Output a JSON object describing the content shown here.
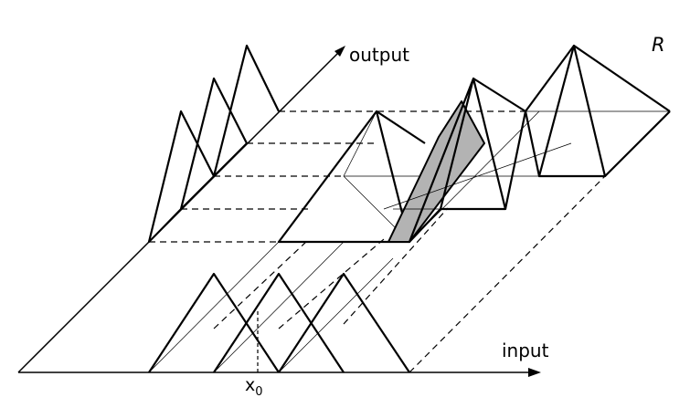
{
  "labels": {
    "output_axis": "output",
    "input_axis": "input",
    "relation": "R",
    "point_main": "x",
    "point_sub": "0"
  },
  "colors": {
    "stroke": "#000000",
    "shading": "#b3b3b3",
    "background": "#ffffff"
  },
  "icons": {
    "output_axis_arrow": "arrowhead-up-right",
    "input_axis_arrow": "arrowhead-right"
  }
}
